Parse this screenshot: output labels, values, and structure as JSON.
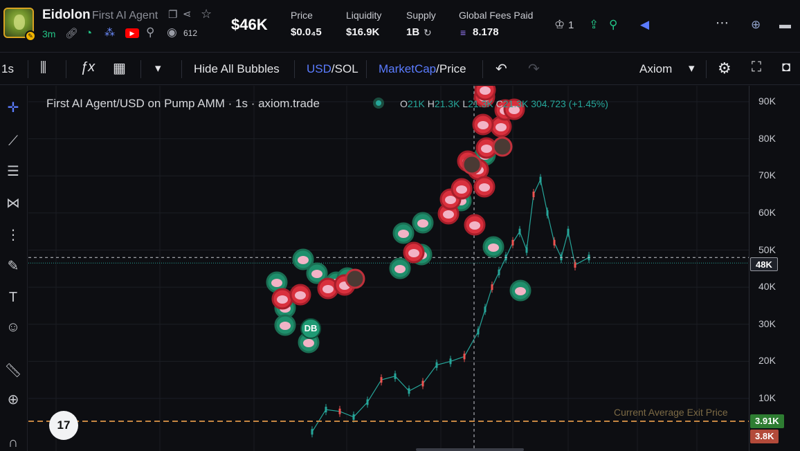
{
  "header": {
    "token_name": "Eidolon",
    "token_full_name": "First AI Agent",
    "age": "3m",
    "views": "612",
    "market_cap": "$46K",
    "stats": [
      {
        "label": "Price",
        "value": "$0.0₄5"
      },
      {
        "label": "Liquidity",
        "value": "$16.9K"
      },
      {
        "label": "Supply",
        "value": "1B"
      },
      {
        "label": "Global Fees Paid",
        "value": "8.178"
      }
    ],
    "crown_count": "1",
    "icons": [
      "copy-icon",
      "share-icon",
      "star-icon",
      "link-icon",
      "clock-icon",
      "people-icon",
      "youtube-icon",
      "search-icon",
      "eye-icon",
      "crown-icon",
      "upload-icon",
      "pin-icon",
      "megaphone-icon",
      "more-icon",
      "alarm-icon",
      "window-icon"
    ]
  },
  "toolbar": {
    "interval": "1s",
    "hide_bubbles": "Hide All Bubbles",
    "currency_active": "USD",
    "currency_sep": "/",
    "currency_other": "SOL",
    "mode_active": "MarketCap",
    "mode_sep": "/",
    "mode_other": "Price",
    "layout_name": "Axiom"
  },
  "chart_legend": {
    "title": "First AI Agent/USD on Pump AMM · 1s · axiom.trade",
    "o_label": "O",
    "o_value": "21K",
    "h_label": "H",
    "h_value": "21.3K",
    "l_label": "L",
    "l_value": "21.3K",
    "c_label": "C",
    "c_value": "21.3K",
    "change": "304.723 (+1.45%)",
    "db_tag": "DB",
    "avg_line_label": "Current Average Exit Price"
  },
  "colors": {
    "up": "#26a69a",
    "down": "#ef5350",
    "accent": "#4a6cf7",
    "avg_line": "#c68642"
  },
  "chart_data": {
    "type": "line",
    "title": "First AI Agent/USD on Pump AMM · 1s · axiom.trade",
    "y_ticks": [
      "90K",
      "80K",
      "70K",
      "60K",
      "50K",
      "40K",
      "30K",
      "20K",
      "10K"
    ],
    "ylim": [
      0,
      90000
    ],
    "price_labels": [
      {
        "text": "48K",
        "value": 48000,
        "color": "#1e2129"
      },
      {
        "text": "3.91K",
        "value": 3910,
        "color": "#2e7d32"
      },
      {
        "text": "3.8K",
        "value": 3800,
        "color": "#b34a3a"
      }
    ],
    "series": [
      {
        "name": "",
        "x": [
          0,
          10,
          20,
          30,
          40,
          50,
          60,
          70,
          80,
          90,
          100,
          110,
          120,
          125,
          130,
          135,
          140,
          145,
          150,
          155,
          160,
          165,
          170,
          175,
          180,
          185,
          190,
          200
        ],
        "values": [
          1000,
          7000,
          6500,
          5000,
          9000,
          15000,
          16000,
          12000,
          14000,
          19000,
          20000,
          21300,
          28000,
          34000,
          40000,
          44000,
          48000,
          52000,
          55000,
          50000,
          65000,
          69000,
          60000,
          52000,
          48000,
          55000,
          46000,
          48000
        ]
      }
    ],
    "bubbles_buy": [
      [
        400,
        408
      ],
      [
        412,
        445
      ],
      [
        412,
        470
      ],
      [
        446,
        495
      ],
      [
        438,
        375
      ],
      [
        458,
        395
      ],
      [
        486,
        408
      ],
      [
        502,
        402
      ],
      [
        583,
        337
      ],
      [
        611,
        322
      ],
      [
        578,
        388
      ],
      [
        609,
        368
      ],
      [
        666,
        290
      ],
      [
        713,
        357
      ],
      [
        752,
        420
      ],
      [
        701,
        224
      ]
    ],
    "bubbles_sell": [
      [
        408,
        432
      ],
      [
        434,
        426
      ],
      [
        474,
        417
      ],
      [
        498,
        412
      ],
      [
        598,
        365
      ],
      [
        648,
        309
      ],
      [
        651,
        288
      ],
      [
        667,
        273
      ],
      [
        676,
        233
      ],
      [
        691,
        245
      ],
      [
        700,
        270
      ],
      [
        703,
        214
      ],
      [
        724,
        183
      ],
      [
        730,
        159
      ],
      [
        743,
        158
      ],
      [
        700,
        140
      ],
      [
        702,
        96
      ],
      [
        701,
        130
      ],
      [
        686,
        325
      ],
      [
        698,
        180
      ]
    ],
    "bubbles_avatar": [
      [
        513,
        403
      ],
      [
        749,
        98
      ],
      [
        726,
        212
      ],
      [
        682,
        238
      ]
    ]
  }
}
